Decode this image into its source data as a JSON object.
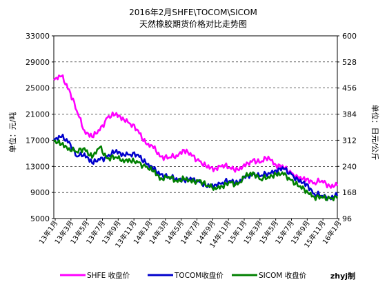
{
  "chart_data": {
    "type": "line",
    "title": "2016年2月SHFE\\TOCOM\\SICOM",
    "subtitle": "天然橡胶期货价格对比走势图",
    "ylabel_left": "单位：元/吨",
    "ylabel_right": "单位：日元/公斤",
    "credit": "zhyj制",
    "y_left": {
      "lim": [
        5000,
        33000
      ],
      "ticks": [
        "5000",
        "9000",
        "13000",
        "17000",
        "21000",
        "25000",
        "29000",
        "33000"
      ]
    },
    "y_right": {
      "lim": [
        96,
        600
      ],
      "ticks": [
        "96",
        "168",
        "240",
        "312",
        "384",
        "456",
        "528",
        "600"
      ]
    },
    "grid": true,
    "legend_position": "bottom",
    "x_ticks": [
      "13年1月",
      "13年3月",
      "13年5月",
      "13年7月",
      "13年9月",
      "13年11月",
      "14年1月",
      "14年3月",
      "14年5月",
      "14年7月",
      "14年9月",
      "14年11月",
      "15年1月",
      "15年3月",
      "15年5月",
      "15年7月",
      "15年9月",
      "15年11月",
      "16年1月"
    ],
    "x_months": [
      "2013-01",
      "2013-02",
      "2013-03",
      "2013-04",
      "2013-05",
      "2013-06",
      "2013-07",
      "2013-08",
      "2013-09",
      "2013-10",
      "2013-11",
      "2013-12",
      "2014-01",
      "2014-02",
      "2014-03",
      "2014-04",
      "2014-05",
      "2014-06",
      "2014-07",
      "2014-08",
      "2014-09",
      "2014-10",
      "2014-11",
      "2014-12",
      "2015-01",
      "2015-02",
      "2015-03",
      "2015-04",
      "2015-05",
      "2015-06",
      "2015-07",
      "2015-08",
      "2015-09",
      "2015-10",
      "2015-11",
      "2015-12",
      "2016-01",
      "2016-02"
    ],
    "series": [
      {
        "name": "SHFE 收盘价",
        "axis": "left",
        "color": "#FF00FF",
        "values": [
          26200,
          26800,
          24800,
          21500,
          18500,
          17500,
          18500,
          20500,
          20900,
          20500,
          19500,
          18500,
          16500,
          15800,
          14500,
          14300,
          14700,
          15500,
          14600,
          13800,
          12800,
          12700,
          13200,
          12800,
          12500,
          13000,
          14000,
          13600,
          14500,
          13200,
          12800,
          12000,
          11000,
          11100,
          10500,
          10800,
          10000,
          10000
        ]
      },
      {
        "name": "TOCOM收盘价",
        "axis": "left",
        "color": "#0000CC",
        "values": [
          17000,
          17500,
          16800,
          14500,
          15000,
          13500,
          14000,
          14500,
          15200,
          15000,
          14800,
          14800,
          13500,
          12500,
          11800,
          11300,
          11200,
          10900,
          11000,
          10600,
          9800,
          10200,
          10500,
          10800,
          10500,
          11200,
          11800,
          11500,
          12000,
          12400,
          12600,
          11800,
          10600,
          10300,
          8800,
          8500,
          8200,
          8500
        ]
      },
      {
        "name": "SICOM 收盘价",
        "axis": "left",
        "color": "#008000",
        "values": [
          16800,
          16400,
          15800,
          15200,
          15800,
          14300,
          15900,
          14200,
          14400,
          14100,
          13800,
          13600,
          12900,
          12200,
          11200,
          11400,
          10800,
          11100,
          10500,
          10900,
          10000,
          9800,
          9900,
          10500,
          10200,
          11400,
          12100,
          11000,
          11400,
          11800,
          11700,
          10900,
          9900,
          9300,
          8300,
          8200,
          8100,
          8100
        ]
      }
    ]
  }
}
